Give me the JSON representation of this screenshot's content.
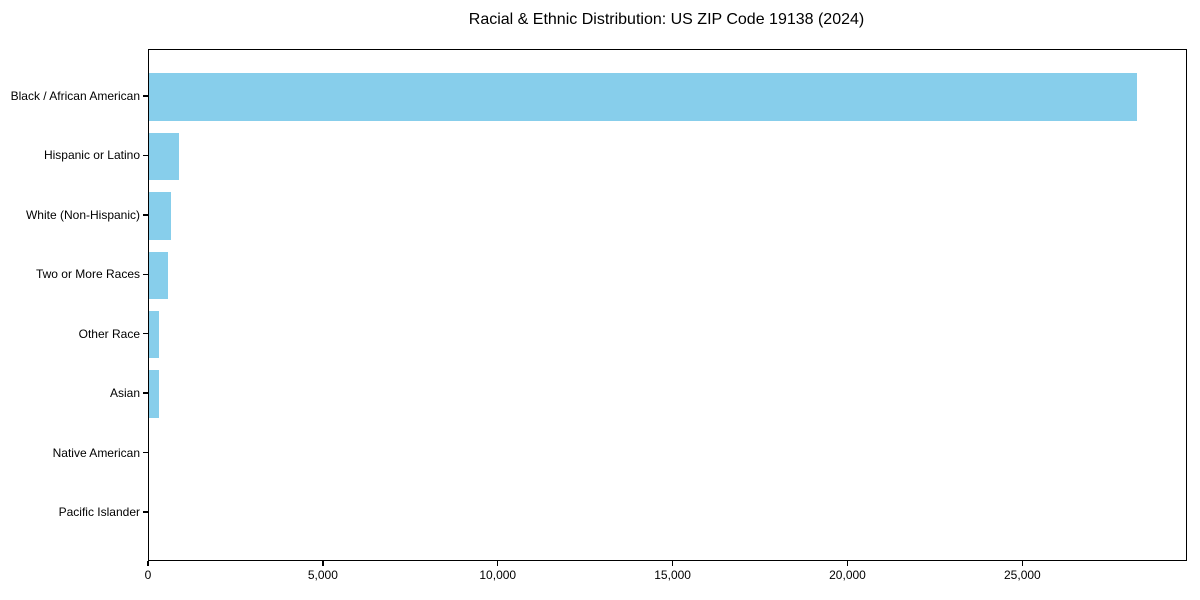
{
  "chart_data": {
    "type": "bar",
    "orientation": "horizontal",
    "title": "Racial & Ethnic Distribution: US ZIP Code 19138 (2024)",
    "categories": [
      "Black / African American",
      "Hispanic or Latino",
      "White (Non-Hispanic)",
      "Two or More Races",
      "Other Race",
      "Asian",
      "Native American",
      "Pacific Islander"
    ],
    "values": [
      28250,
      850,
      630,
      540,
      300,
      290,
      0,
      0
    ],
    "bar_color": "#87CEEB",
    "xlabel": "",
    "ylabel": "",
    "xlim": [
      0,
      29650
    ],
    "xticks": {
      "values": [
        0,
        5000,
        10000,
        15000,
        20000,
        25000
      ],
      "labels": [
        "0",
        "5,000",
        "10,000",
        "15,000",
        "20,000",
        "25,000"
      ]
    },
    "grid": "off",
    "legend": "none",
    "background_color": "#ffffff",
    "text_color": "#000000"
  }
}
